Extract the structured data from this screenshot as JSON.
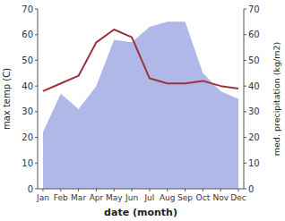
{
  "chart_data": {
    "type": "line",
    "xlabel": "date (month)",
    "ylabel": "max temp (C)",
    "y2label": "med. precipitation (kg/m2)",
    "categories": [
      "Jan",
      "Feb",
      "Mar",
      "Apr",
      "May",
      "Jun",
      "Jul",
      "Aug",
      "Sep",
      "Oct",
      "Nov",
      "Dec"
    ],
    "series": [
      {
        "type": "area",
        "axis": "y2",
        "color": "#b0b8e8",
        "values": [
          22,
          37,
          31,
          40,
          58,
          57,
          63,
          65,
          65,
          45,
          38,
          35
        ]
      },
      {
        "type": "line",
        "color": "#a03040",
        "values": [
          38,
          41,
          44,
          57,
          62,
          59,
          43,
          41,
          41,
          42,
          40,
          39
        ]
      }
    ],
    "ylim": [
      0,
      70
    ],
    "yticks": [
      0,
      10,
      20,
      30,
      40,
      50,
      60,
      70
    ],
    "y2lim": [
      0,
      70
    ],
    "y2ticks": [
      0,
      10,
      20,
      30,
      40,
      50,
      60,
      70
    ],
    "grid": false
  }
}
